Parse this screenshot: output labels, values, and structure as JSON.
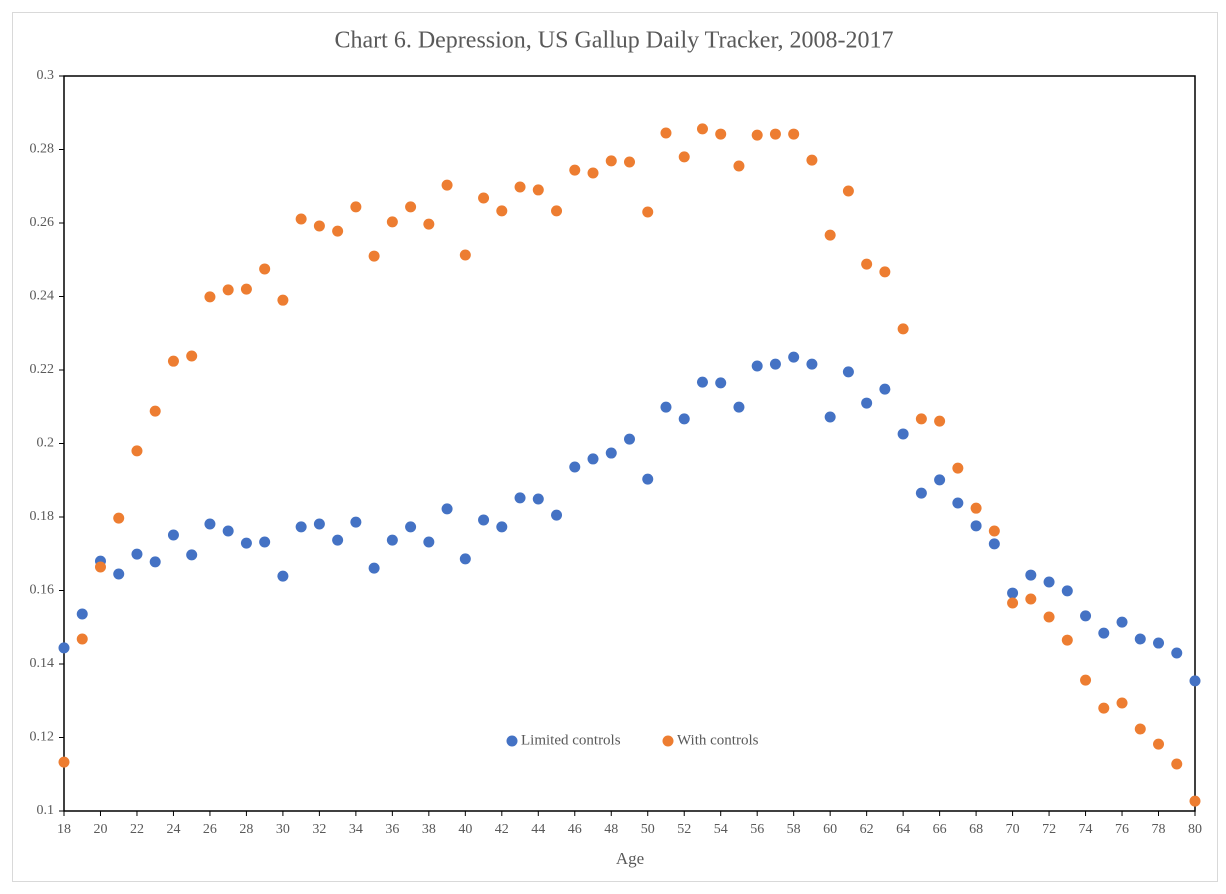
{
  "chart_data": {
    "type": "scatter",
    "title": "Chart 6. Depression, US Gallup Daily Tracker, 2008-2017",
    "x_label": "Age",
    "x": [
      18,
      19,
      20,
      21,
      22,
      23,
      24,
      25,
      26,
      27,
      28,
      29,
      30,
      31,
      32,
      33,
      34,
      35,
      36,
      37,
      38,
      39,
      40,
      41,
      42,
      43,
      44,
      45,
      46,
      47,
      48,
      49,
      50,
      51,
      52,
      53,
      54,
      55,
      56,
      57,
      58,
      59,
      60,
      61,
      62,
      63,
      64,
      65,
      66,
      67,
      68,
      69,
      70,
      71,
      72,
      73,
      74,
      75,
      76,
      77,
      78,
      79,
      80
    ],
    "series": [
      {
        "name": "Limited controls",
        "color": "#4472c4",
        "values": [
          0.1444,
          0.1536,
          0.168,
          0.1645,
          0.1699,
          0.1678,
          0.1751,
          0.1697,
          0.1781,
          0.1762,
          0.1729,
          0.1732,
          0.1639,
          0.1773,
          0.1781,
          0.1737,
          0.1786,
          0.1661,
          0.1737,
          0.1773,
          0.1732,
          0.1822,
          0.1686,
          0.1792,
          0.1773,
          0.1852,
          0.1849,
          0.1805,
          0.1936,
          0.1958,
          0.1974,
          0.2012,
          0.1903,
          0.2099,
          0.2067,
          0.2167,
          0.2165,
          0.2099,
          0.2211,
          0.2216,
          0.2235,
          0.2216,
          0.2072,
          0.2195,
          0.211,
          0.2148,
          0.2026,
          0.1865,
          0.1901,
          0.1838,
          0.1776,
          0.1727,
          0.1593,
          0.1642,
          0.1623,
          0.1599,
          0.1531,
          0.1484,
          0.1514,
          0.1468,
          0.1457,
          0.143,
          0.1354
        ]
      },
      {
        "name": "With controls",
        "color": "#ed7d31",
        "values": [
          0.1133,
          0.1468,
          0.1664,
          0.1797,
          0.198,
          0.2088,
          0.2224,
          0.2238,
          0.2399,
          0.2418,
          0.242,
          0.2475,
          0.239,
          0.2611,
          0.2592,
          0.2578,
          0.2644,
          0.251,
          0.2603,
          0.2644,
          0.2597,
          0.2703,
          0.2513,
          0.2668,
          0.2633,
          0.2698,
          0.269,
          0.2633,
          0.2744,
          0.2736,
          0.2769,
          0.2766,
          0.263,
          0.2845,
          0.278,
          0.2856,
          0.2842,
          0.2755,
          0.2839,
          0.2842,
          0.2842,
          0.2771,
          0.2567,
          0.2687,
          0.2488,
          0.2467,
          0.2312,
          0.2067,
          0.2061,
          0.1933,
          0.1824,
          0.1762,
          0.1566,
          0.1577,
          0.1528,
          0.1465,
          0.1356,
          0.128,
          0.1294,
          0.1223,
          0.1182,
          0.1128,
          0.1027
        ]
      }
    ],
    "xlim": [
      18,
      80
    ],
    "xticks": [
      18,
      20,
      22,
      24,
      26,
      28,
      30,
      32,
      34,
      36,
      38,
      40,
      42,
      44,
      46,
      48,
      50,
      52,
      54,
      56,
      58,
      60,
      62,
      64,
      66,
      68,
      70,
      72,
      74,
      76,
      78,
      80
    ],
    "ylim": [
      0.1,
      0.3
    ],
    "yticks": [
      0.1,
      0.12,
      0.14,
      0.16,
      0.18,
      0.2,
      0.22,
      0.24,
      0.26,
      0.28,
      0.3
    ],
    "grid": false,
    "legend": "bottom-center"
  }
}
